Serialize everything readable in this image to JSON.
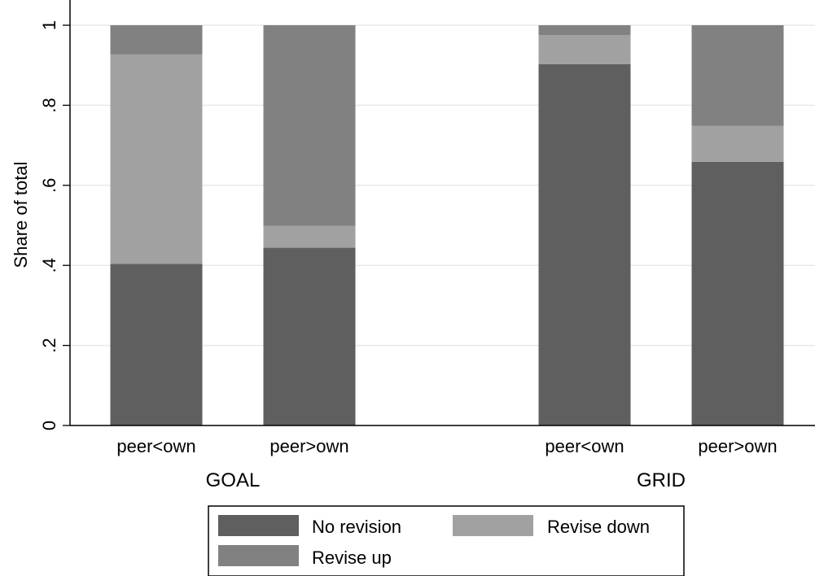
{
  "chart_data": {
    "type": "bar",
    "stacked": true,
    "ylabel": "Share of total",
    "ylim": [
      0,
      1
    ],
    "yticks": [
      {
        "value": 0,
        "label": "0"
      },
      {
        "value": 0.2,
        "label": ".2"
      },
      {
        "value": 0.4,
        "label": ".4"
      },
      {
        "value": 0.6,
        "label": ".6"
      },
      {
        "value": 0.8,
        "label": ".8"
      },
      {
        "value": 1,
        "label": "1"
      }
    ],
    "grid": true,
    "groups": [
      {
        "label": "GOAL",
        "categories": [
          "peer<own",
          "peer>own"
        ]
      },
      {
        "label": "GRID",
        "categories": [
          "peer<own",
          "peer>own"
        ]
      }
    ],
    "categories": [
      "peer<own",
      "peer>own",
      "peer<own",
      "peer>own"
    ],
    "series": [
      {
        "name": "No revision",
        "color": "#5f5f5f",
        "values": [
          0.404,
          0.444,
          0.903,
          0.659
        ]
      },
      {
        "name": "Revise down",
        "color": "#a1a1a1",
        "values": [
          0.523,
          0.055,
          0.072,
          0.09
        ]
      },
      {
        "name": "Revise up",
        "color": "#818181",
        "values": [
          0.073,
          0.501,
          0.025,
          0.251
        ]
      }
    ],
    "legend": {
      "position": "bottom"
    }
  }
}
